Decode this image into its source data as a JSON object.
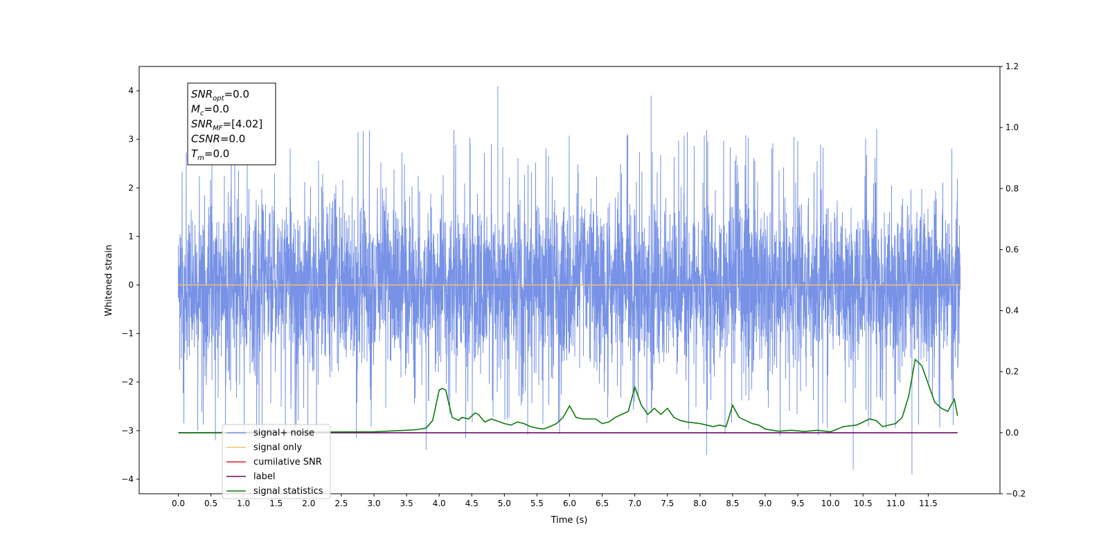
{
  "chart_data": {
    "type": "line",
    "xlabel": "Time (s)",
    "ylabel": "Whitened strain",
    "xlim": [
      -0.6,
      12.6
    ],
    "ylim": [
      -4.3,
      4.5
    ],
    "y2lim": [
      -0.2,
      1.2
    ],
    "xticks": [
      0.0,
      0.5,
      1.0,
      1.5,
      2.0,
      2.5,
      3.0,
      3.5,
      4.0,
      4.5,
      5.0,
      5.5,
      6.0,
      6.5,
      7.0,
      7.5,
      8.0,
      8.5,
      9.0,
      9.5,
      10.0,
      10.5,
      11.0,
      11.5
    ],
    "xtick_labels": [
      "0.0",
      "0.5",
      "1.0",
      "1.5",
      "2.0",
      "2.5",
      "3.0",
      "3.5",
      "4.0",
      "4.5",
      "5.0",
      "5.5",
      "6.0",
      "6.5",
      "7.0",
      "7.5",
      "8.0",
      "8.5",
      "9.0",
      "9.5",
      "10.0",
      "10.5",
      "11.0",
      "11.5"
    ],
    "yticks": [
      -4,
      -3,
      -2,
      -1,
      0,
      1,
      2,
      3,
      4
    ],
    "ytick_labels": [
      "−4",
      "−3",
      "−2",
      "−1",
      "0",
      "1",
      "2",
      "3",
      "4"
    ],
    "y2ticks": [
      -0.2,
      0.0,
      0.2,
      0.4,
      0.6,
      0.8,
      1.0,
      1.2
    ],
    "y2tick_labels": [
      "−0.2",
      "0.0",
      "0.2",
      "0.4",
      "0.6",
      "0.8",
      "1.0",
      "1.2"
    ],
    "legend_placement": "lower-left",
    "annotation": [
      {
        "sym": "SNR",
        "sub": "opt",
        "val": "=0.0"
      },
      {
        "sym": "M",
        "sub": "c",
        "val": "=0.0"
      },
      {
        "sym": "SNR",
        "sub": "MF",
        "val": "=[4.02]"
      },
      {
        "sym": "CSNR",
        "sub": "",
        "val": "=0.0"
      },
      {
        "sym": "T",
        "sub": "m",
        "val": "=0.0"
      }
    ],
    "series": [
      {
        "name": "signal+ noise",
        "color": "#7792e6",
        "axis": "left",
        "kind": "noise",
        "x_range": [
          0.0,
          11.99
        ],
        "std": 0.85,
        "peak_max": 4.1,
        "peak_min": -3.9
      },
      {
        "name": "signal only",
        "color": "#f5c26b",
        "axis": "left",
        "x": [
          0.0,
          12.0
        ],
        "y": [
          0.0,
          0.0
        ]
      },
      {
        "name": "cumilative SNR",
        "color": "#e31a1c",
        "axis": "right",
        "x": [],
        "y": []
      },
      {
        "name": "label",
        "color": "#6a0a6a",
        "axis": "right",
        "x": [
          0.0,
          11.95
        ],
        "y": [
          0.0,
          0.0
        ]
      },
      {
        "name": "signal statistics",
        "color": "#0a7a0a",
        "axis": "right",
        "x": [
          0.0,
          3.0,
          3.5,
          3.65,
          3.8,
          3.9,
          4.0,
          4.05,
          4.1,
          4.2,
          4.3,
          4.35,
          4.45,
          4.55,
          4.6,
          4.7,
          4.8,
          5.0,
          5.1,
          5.2,
          5.3,
          5.4,
          5.5,
          5.6,
          5.7,
          5.8,
          5.9,
          6.0,
          6.1,
          6.2,
          6.4,
          6.5,
          6.6,
          6.7,
          6.8,
          6.9,
          7.0,
          7.1,
          7.2,
          7.3,
          7.4,
          7.5,
          7.6,
          7.7,
          7.8,
          8.0,
          8.1,
          8.2,
          8.3,
          8.4,
          8.5,
          8.6,
          8.7,
          8.8,
          8.9,
          9.0,
          9.2,
          9.4,
          9.6,
          9.8,
          10.0,
          10.2,
          10.4,
          10.6,
          10.7,
          10.8,
          11.0,
          11.1,
          11.2,
          11.3,
          11.4,
          11.5,
          11.6,
          11.7,
          11.8,
          11.9,
          11.95
        ],
        "y": [
          0.0,
          0.003,
          0.008,
          0.01,
          0.015,
          0.04,
          0.14,
          0.145,
          0.14,
          0.05,
          0.04,
          0.05,
          0.045,
          0.065,
          0.06,
          0.035,
          0.045,
          0.03,
          0.025,
          0.035,
          0.03,
          0.02,
          0.015,
          0.012,
          0.02,
          0.03,
          0.05,
          0.088,
          0.05,
          0.045,
          0.045,
          0.03,
          0.035,
          0.05,
          0.06,
          0.07,
          0.15,
          0.09,
          0.06,
          0.08,
          0.06,
          0.08,
          0.05,
          0.04,
          0.035,
          0.03,
          0.025,
          0.02,
          0.025,
          0.02,
          0.09,
          0.05,
          0.04,
          0.03,
          0.025,
          0.012,
          0.005,
          0.008,
          0.004,
          0.008,
          0.003,
          0.02,
          0.025,
          0.045,
          0.04,
          0.02,
          0.03,
          0.05,
          0.12,
          0.24,
          0.22,
          0.16,
          0.1,
          0.08,
          0.07,
          0.11,
          0.055
        ]
      }
    ]
  }
}
